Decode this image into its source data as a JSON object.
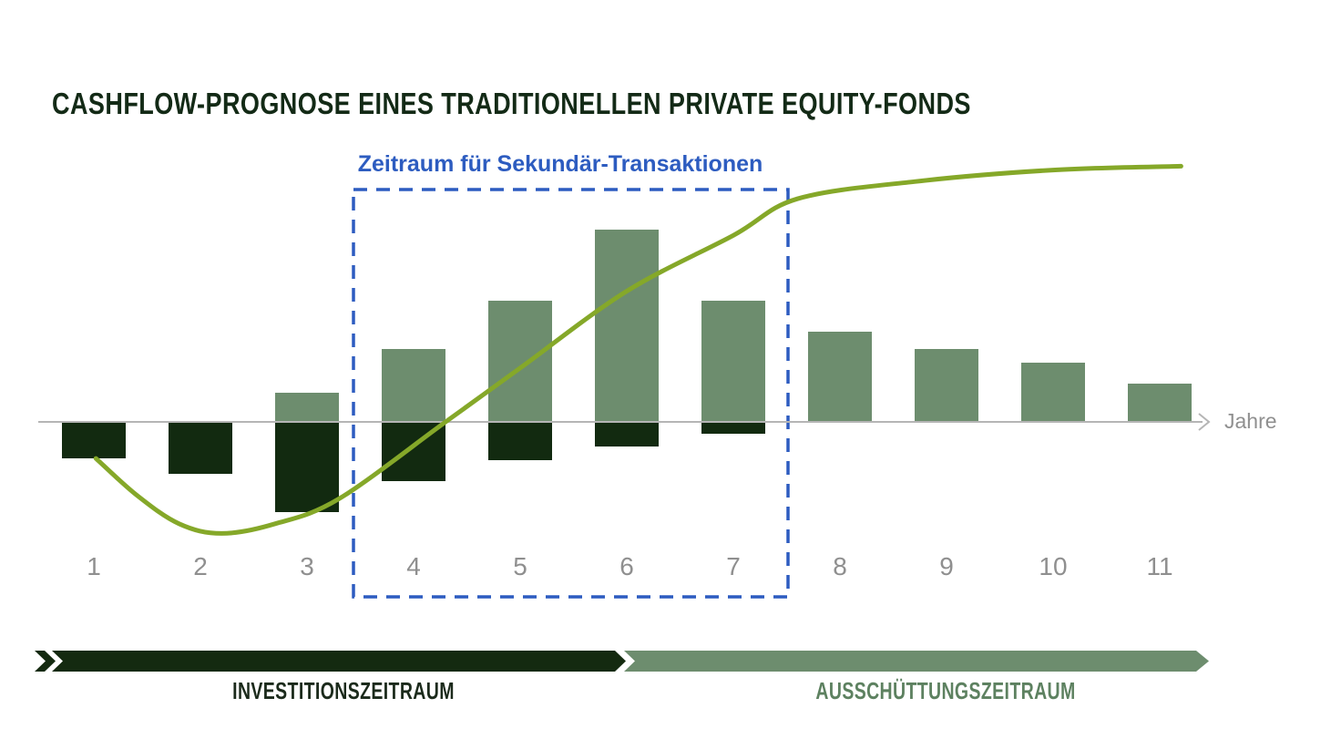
{
  "title": "CASHFLOW-PROGNOSE EINES TRADITIONELLEN PRIVATE EQUITY-FONDS",
  "secondary_window": {
    "label": "Zeitraum für Sekundär-Transaktionen"
  },
  "axis": {
    "label": "Jahre"
  },
  "periods": {
    "investment": {
      "label": "INVESTITIONSZEITRAUM"
    },
    "distribution": {
      "label": "AUSSCHÜTTUNGSZEITRAUM"
    }
  },
  "colors": {
    "title": "#132a16",
    "dark_bar": "#122a10",
    "light_bar": "#6d8d6e",
    "curve": "#85a829",
    "blue": "#2d5cc0",
    "axis": "#b5b5b5",
    "tick_label": "#8f8f8f",
    "arrow_invest": "#142a10",
    "arrow_distrib": "#6d8d6e",
    "label_invest": "#1b2a1b",
    "label_distrib": "#5d8160"
  },
  "chart_data": {
    "type": "bar",
    "title": "CASHFLOW-PROGNOSE EINES TRADITIONELLEN PRIVATE EQUITY-FONDS",
    "categories": [
      "1",
      "2",
      "3",
      "4",
      "5",
      "6",
      "7",
      "8",
      "9",
      "10",
      "11"
    ],
    "xlabel": "Jahre",
    "ylabel": "",
    "value_scale": "relative units (no y-axis scale shown); largest positive bar = 100",
    "grid": false,
    "legend_position": "none",
    "series": [
      {
        "name": "positive-cashflows",
        "type": "bar",
        "values": [
          0,
          0,
          15,
          38,
          63,
          100,
          63,
          47,
          38,
          31,
          20
        ]
      },
      {
        "name": "negative-cashflows",
        "type": "bar",
        "values": [
          -19,
          -27,
          -47,
          -31,
          -20,
          -13,
          -6,
          0,
          0,
          0,
          0
        ]
      }
    ],
    "line": {
      "name": "cumulative-net-cashflow-j-curve",
      "points": [
        [
          1.02,
          -19
        ],
        [
          1.4,
          -38
        ],
        [
          1.8,
          -53
        ],
        [
          2.2,
          -58
        ],
        [
          2.7,
          -53
        ],
        [
          3.3,
          -40
        ],
        [
          4.3,
          0
        ],
        [
          5.0,
          28
        ],
        [
          6.0,
          68
        ],
        [
          7.0,
          97
        ],
        [
          7.6,
          116
        ],
        [
          8.7,
          125
        ],
        [
          10.0,
          131
        ],
        [
          11.2,
          133
        ]
      ]
    },
    "highlight_region": {
      "label": "Zeitraum für Sekundär-Transaktionen",
      "from_year": 3.44,
      "to_year": 7.52,
      "style": "blue-dashed-rectangle"
    },
    "period_bands": [
      {
        "label": "INVESTITIONSZEITRAUM",
        "from_year": 1,
        "to_year": 6,
        "color_key": "arrow_invest"
      },
      {
        "label": "AUSSCHÜTTUNGSZEITRAUM",
        "from_year": 6,
        "to_year": 11,
        "color_key": "arrow_distrib"
      }
    ]
  }
}
